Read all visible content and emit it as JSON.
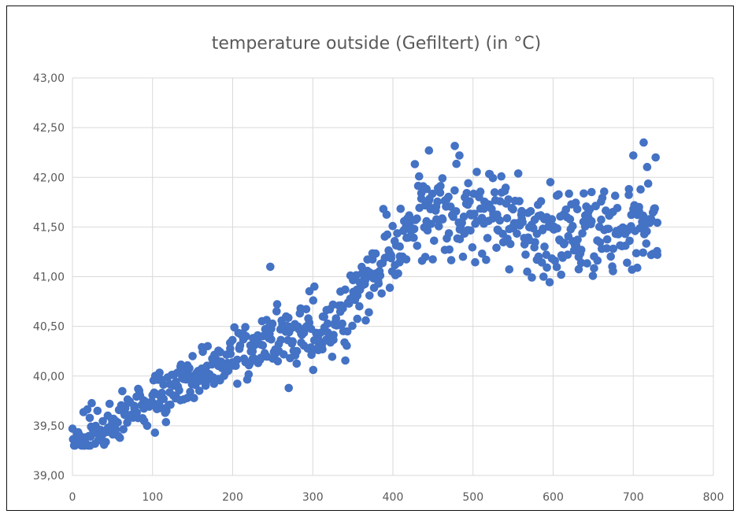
{
  "chart_data": {
    "type": "scatter",
    "title": "temperature outside (Gefiltert) (in °C)",
    "xlabel": "",
    "ylabel": "",
    "xlim": [
      0,
      800
    ],
    "ylim": [
      39.0,
      43.0
    ],
    "x_ticks": [
      0,
      100,
      200,
      300,
      400,
      500,
      600,
      700,
      800
    ],
    "x_tick_labels": [
      "0",
      "100",
      "200",
      "300",
      "400",
      "500",
      "600",
      "700",
      "800"
    ],
    "y_ticks": [
      39.0,
      39.5,
      40.0,
      40.5,
      41.0,
      41.5,
      42.0,
      42.5,
      43.0
    ],
    "y_tick_labels": [
      "39,00",
      "39,50",
      "40,00",
      "40,50",
      "41,00",
      "41,50",
      "42,00",
      "42,50",
      "43,00"
    ],
    "grid": true,
    "legend": "none",
    "marker_color": "#4472C4",
    "trend_anchors": [
      {
        "x": 0,
        "y": 39.38
      },
      {
        "x": 50,
        "y": 39.5
      },
      {
        "x": 100,
        "y": 39.8
      },
      {
        "x": 150,
        "y": 39.95
      },
      {
        "x": 200,
        "y": 40.2
      },
      {
        "x": 250,
        "y": 40.35
      },
      {
        "x": 300,
        "y": 40.45
      },
      {
        "x": 340,
        "y": 40.6
      },
      {
        "x": 370,
        "y": 41.0
      },
      {
        "x": 400,
        "y": 41.2
      },
      {
        "x": 430,
        "y": 41.5
      },
      {
        "x": 470,
        "y": 41.6
      },
      {
        "x": 520,
        "y": 41.65
      },
      {
        "x": 580,
        "y": 41.45
      },
      {
        "x": 630,
        "y": 41.45
      },
      {
        "x": 680,
        "y": 41.5
      },
      {
        "x": 730,
        "y": 41.55
      }
    ],
    "point_count": 730,
    "x_range": [
      0,
      730
    ],
    "noise_spread": 0.12,
    "notable_points": [
      {
        "x": 445,
        "y": 42.27
      },
      {
        "x": 483,
        "y": 42.22
      },
      {
        "x": 713,
        "y": 42.35
      },
      {
        "x": 700,
        "y": 42.22
      },
      {
        "x": 728,
        "y": 42.2
      },
      {
        "x": 247,
        "y": 41.1
      },
      {
        "x": 302,
        "y": 40.9
      },
      {
        "x": 103,
        "y": 39.43
      },
      {
        "x": 270,
        "y": 39.88
      },
      {
        "x": 588,
        "y": 41.0
      },
      {
        "x": 610,
        "y": 41.02
      },
      {
        "x": 730,
        "y": 41.22
      }
    ]
  }
}
